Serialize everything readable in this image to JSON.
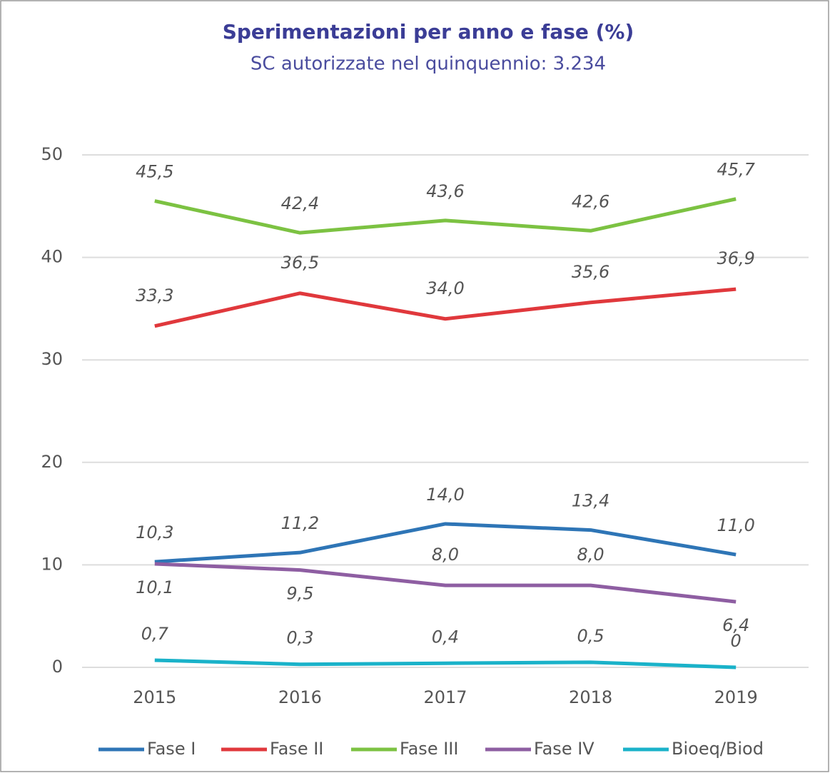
{
  "chart_data": {
    "type": "line",
    "title": "Sperimentazioni per anno e fase (%)",
    "subtitle": "SC autorizzate nel quinquennio: 3.234",
    "categories": [
      "2015",
      "2016",
      "2017",
      "2018",
      "2019"
    ],
    "series": [
      {
        "name": "Fase I",
        "color": "#2e75b6",
        "values": [
          10.3,
          11.2,
          14.0,
          13.4,
          11.0
        ],
        "value_labels": [
          "10,3",
          "11,2",
          "14,0",
          "13,4",
          "11,0"
        ]
      },
      {
        "name": "Fase II",
        "color": "#e0383c",
        "values": [
          33.3,
          36.5,
          34.0,
          35.6,
          36.9
        ],
        "value_labels": [
          "33,3",
          "36,5",
          "34,0",
          "35,6",
          "36,9"
        ]
      },
      {
        "name": "Fase III",
        "color": "#7cc242",
        "values": [
          45.5,
          42.4,
          43.6,
          42.6,
          45.7
        ],
        "value_labels": [
          "45,5",
          "42,4",
          "43,6",
          "42,6",
          "45,7"
        ]
      },
      {
        "name": "Fase IV",
        "color": "#8e5ea2",
        "values": [
          10.1,
          9.5,
          8.0,
          8.0,
          6.4
        ],
        "value_labels": [
          "10,1",
          "9,5",
          "8,0",
          "8,0",
          "6,4"
        ]
      },
      {
        "name": "Bioeq/Biod",
        "color": "#1ab2c9",
        "values": [
          0.7,
          0.3,
          0.4,
          0.5,
          0
        ],
        "value_labels": [
          "0,7",
          "0,3",
          "0,4",
          "0,5",
          "0"
        ]
      }
    ],
    "ylim": [
      0,
      50
    ],
    "yticks": [
      0,
      10,
      20,
      30,
      40,
      50
    ],
    "grid": true,
    "legend": "bottom"
  }
}
